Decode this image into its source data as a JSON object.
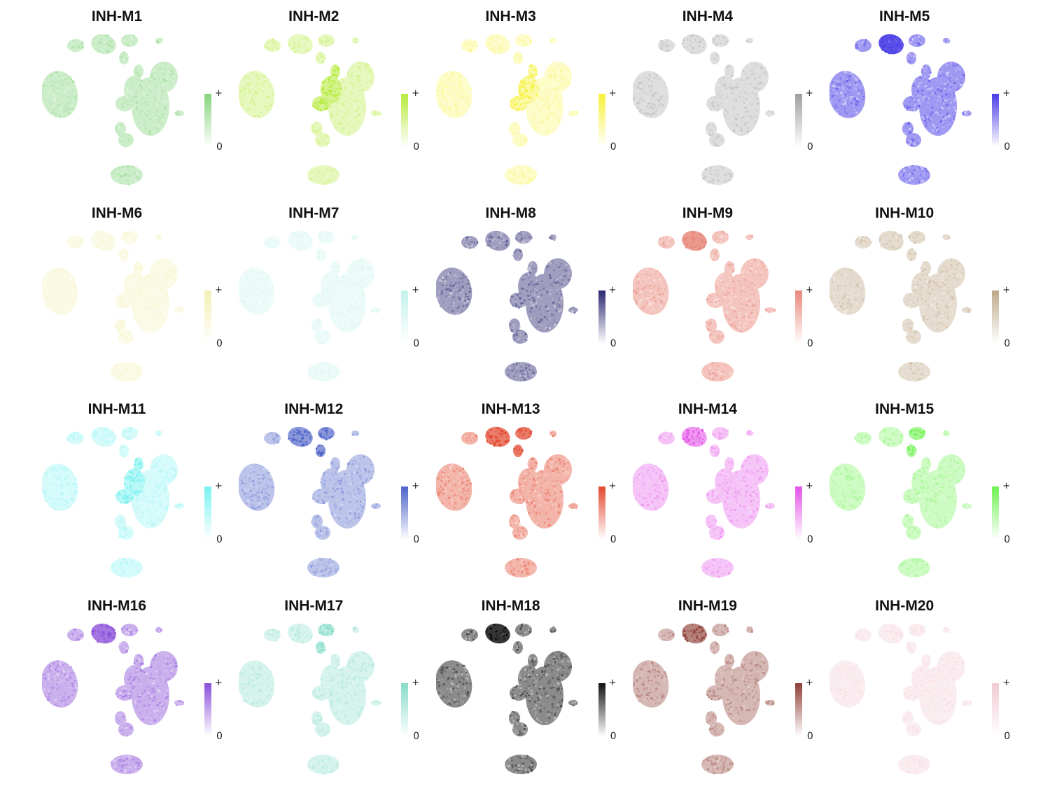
{
  "chart_data": {
    "type": "scatter",
    "legend_placement": "right",
    "legend_labels": {
      "max": "+",
      "min": "0"
    },
    "panels": [
      {
        "title": "INH-M1",
        "color": "#84d47c",
        "intensity": 0.55,
        "hotspots": []
      },
      {
        "title": "INH-M2",
        "color": "#b6ea3c",
        "intensity": 0.45,
        "hotspots": [
          "center"
        ]
      },
      {
        "title": "INH-M3",
        "color": "#f7f23a",
        "intensity": 0.35,
        "hotspots": [
          "center"
        ]
      },
      {
        "title": "INH-M4",
        "color": "#9e9e9e",
        "intensity": 0.45,
        "hotspots": []
      },
      {
        "title": "INH-M5",
        "color": "#4a3de6",
        "intensity": 0.7,
        "hotspots": [
          "topleft"
        ]
      },
      {
        "title": "INH-M6",
        "color": "#f4f0b4",
        "intensity": 0.45,
        "hotspots": []
      },
      {
        "title": "INH-M7",
        "color": "#c4f2ec",
        "intensity": 0.4,
        "hotspots": []
      },
      {
        "title": "INH-M8",
        "color": "#2a2770",
        "intensity": 0.6,
        "hotspots": []
      },
      {
        "title": "INH-M9",
        "color": "#e8877a",
        "intensity": 0.65,
        "hotspots": [
          "topleft"
        ]
      },
      {
        "title": "INH-M10",
        "color": "#bfa889",
        "intensity": 0.55,
        "hotspots": []
      },
      {
        "title": "INH-M11",
        "color": "#79f1f0",
        "intensity": 0.4,
        "hotspots": [
          "center"
        ]
      },
      {
        "title": "INH-M12",
        "color": "#4c62c8",
        "intensity": 0.5,
        "hotspots": [
          "topleft",
          "topmid"
        ]
      },
      {
        "title": "INH-M13",
        "color": "#e2482f",
        "intensity": 0.55,
        "hotspots": [
          "topleft",
          "topmid"
        ]
      },
      {
        "title": "INH-M14",
        "color": "#e353e8",
        "intensity": 0.45,
        "hotspots": [
          "topleft"
        ]
      },
      {
        "title": "INH-M15",
        "color": "#6ff251",
        "intensity": 0.45,
        "hotspots": [
          "topmid"
        ]
      },
      {
        "title": "INH-M16",
        "color": "#8a4fd8",
        "intensity": 0.6,
        "hotspots": [
          "topleft"
        ]
      },
      {
        "title": "INH-M17",
        "color": "#86dcc9",
        "intensity": 0.45,
        "hotspots": [
          "topmid"
        ]
      },
      {
        "title": "INH-M18",
        "color": "#111111",
        "intensity": 0.65,
        "hotspots": [
          "topleft"
        ]
      },
      {
        "title": "INH-M19",
        "color": "#8e3e36",
        "intensity": 0.5,
        "hotspots": [
          "topleft"
        ]
      },
      {
        "title": "INH-M20",
        "color": "#f1c9d3",
        "intensity": 0.45,
        "hotspots": []
      }
    ]
  }
}
